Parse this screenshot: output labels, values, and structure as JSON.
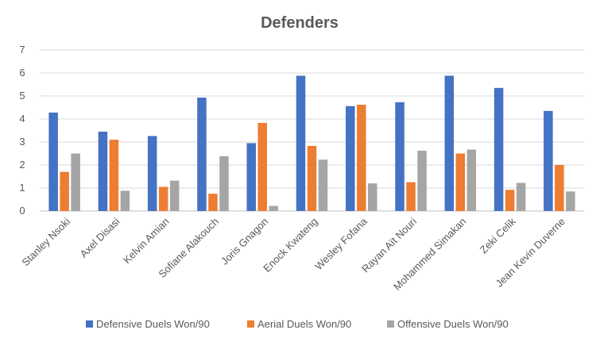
{
  "chart_data": {
    "type": "bar",
    "title": "Defenders",
    "xlabel": "",
    "ylabel": "",
    "ylim": [
      0,
      7
    ],
    "yticks": [
      0,
      1,
      2,
      3,
      4,
      5,
      6,
      7
    ],
    "grid": true,
    "legend_position": "bottom",
    "categories": [
      "Stanley Nsoki",
      "Axel Disasi",
      "Kelvin Amian",
      "Sofiane Alakouch",
      "Joris Gnagon",
      "Enock Kwateng",
      "Wesley Fofana",
      "Rayan Aït Nouri",
      "Mohammed Simakan",
      "Zeki Celik",
      "Jean Kevin Duverne"
    ],
    "series": [
      {
        "name": "Defensive Duels Won/90",
        "color": "#4472C4",
        "values": [
          4.28,
          3.45,
          3.26,
          4.93,
          2.95,
          5.88,
          4.56,
          4.73,
          5.88,
          5.35,
          4.35
        ]
      },
      {
        "name": "Aerial Duels Won/90",
        "color": "#ED7D31",
        "values": [
          1.7,
          3.1,
          1.05,
          0.75,
          3.83,
          2.83,
          4.62,
          1.25,
          2.5,
          0.92,
          2.0
        ]
      },
      {
        "name": "Offensive Duels Won/90",
        "color": "#A5A5A5",
        "values": [
          2.5,
          0.88,
          1.32,
          2.38,
          0.22,
          2.23,
          1.2,
          2.62,
          2.67,
          1.22,
          0.85
        ]
      }
    ]
  }
}
